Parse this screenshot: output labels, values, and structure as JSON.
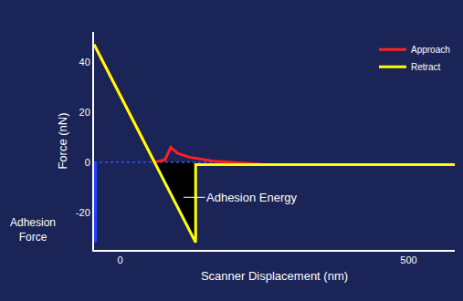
{
  "chart_data": {
    "type": "line",
    "xlabel": "Scanner Displacement (nm)",
    "ylabel": "Force (nN)",
    "xlim": [
      -45,
      580
    ],
    "xticks": [
      0,
      500
    ],
    "ylim": [
      -35,
      52
    ],
    "yticks": [
      -20,
      0,
      20,
      40
    ],
    "grid": false,
    "legend": "top right",
    "series": [
      {
        "name": "Approach",
        "color": "#ff2020",
        "line_style": "solid",
        "x": [
          580,
          250,
          160,
          120,
          100,
          88,
          78,
          60,
          -45
        ],
        "values": [
          -1,
          -1,
          0.5,
          2,
          3.5,
          6,
          1,
          0,
          47
        ]
      },
      {
        "name": "Retract",
        "color": "#ffff00",
        "line_style": "solid",
        "x": [
          -45,
          60,
          131,
          131,
          580
        ],
        "values": [
          47,
          0,
          -32,
          -1,
          -1
        ]
      }
    ],
    "baseline": {
      "x": [
        -45,
        175
      ],
      "values": [
        0,
        0
      ],
      "color": "#3355ff",
      "line_style": "dot"
    },
    "adhesion_region": {
      "x": [
        60,
        131,
        131
      ],
      "values": [
        0,
        -32,
        0
      ],
      "color": "#000000"
    },
    "adhesion_force": {
      "x": -45,
      "values": [
        0,
        -32
      ],
      "color": "#2244ff"
    },
    "annotations": [
      {
        "text": "Adhesion Energy",
        "x": 110,
        "y": -14
      },
      {
        "text": "Adhesion Force",
        "x": -45,
        "y": -27
      }
    ]
  }
}
